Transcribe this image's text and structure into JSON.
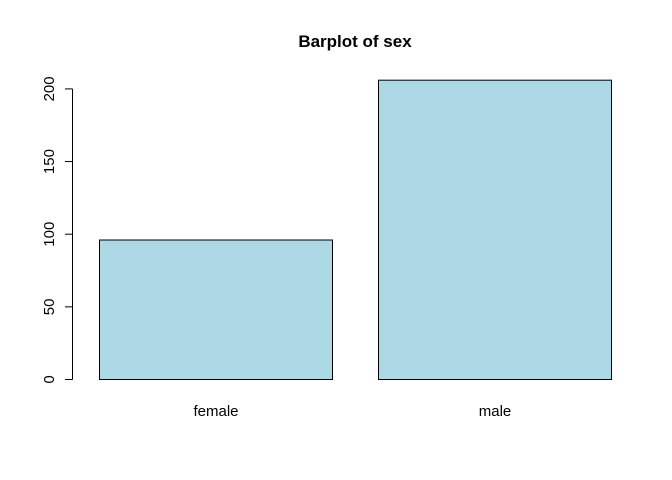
{
  "chart_data": {
    "type": "bar",
    "title": "Barplot of sex",
    "xlabel": "",
    "ylabel": "",
    "categories": [
      "female",
      "male"
    ],
    "values": [
      96,
      206
    ],
    "ylim": [
      0,
      215
    ],
    "yticks": [
      0,
      50,
      100,
      150,
      200
    ],
    "grid": false,
    "legend": "none",
    "bar_color": "#ADD8E6",
    "border_color": "#000000"
  }
}
